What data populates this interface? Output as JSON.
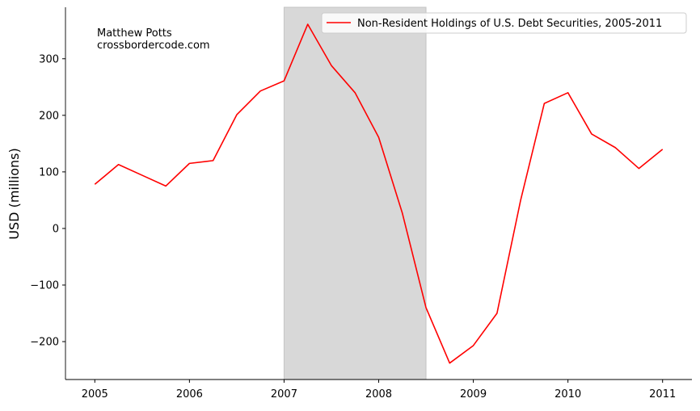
{
  "chart_data": {
    "type": "line",
    "title": "",
    "xlabel": "",
    "ylabel": "USD (millions)",
    "xlim": [
      2004.69,
      2011.31
    ],
    "ylim": [
      -267,
      391
    ],
    "xticks": [
      2005,
      2006,
      2007,
      2008,
      2009,
      2010,
      2011
    ],
    "yticks": [
      -200,
      -100,
      0,
      100,
      200,
      300
    ],
    "ytick_labels": [
      "−200",
      "−100",
      "0",
      "100",
      "200",
      "300"
    ],
    "grid": false,
    "legend_position": "top-right",
    "shaded_region": {
      "x_start": 2007.0,
      "x_end": 2008.5,
      "color": "#d8d8d8"
    },
    "annotation": [
      "Matthew Potts",
      "crossbordercode.com"
    ],
    "series": [
      {
        "name": "Non-Resident Holdings of U.S. Debt Securities, 2005-2011",
        "color": "#ff0000",
        "x": [
          2005.0,
          2005.25,
          2005.5,
          2005.75,
          2006.0,
          2006.25,
          2006.5,
          2006.75,
          2007.0,
          2007.25,
          2007.5,
          2007.75,
          2008.0,
          2008.25,
          2008.5,
          2008.75,
          2009.0,
          2009.25,
          2009.5,
          2009.75,
          2010.0,
          2010.25,
          2010.5,
          2010.75,
          2011.0
        ],
        "y": [
          78,
          113,
          94,
          75,
          115,
          120,
          201,
          243,
          261,
          361,
          288,
          240,
          161,
          27,
          -140,
          -238,
          -207,
          -150,
          50,
          221,
          240,
          167,
          143,
          106,
          140
        ]
      }
    ]
  }
}
